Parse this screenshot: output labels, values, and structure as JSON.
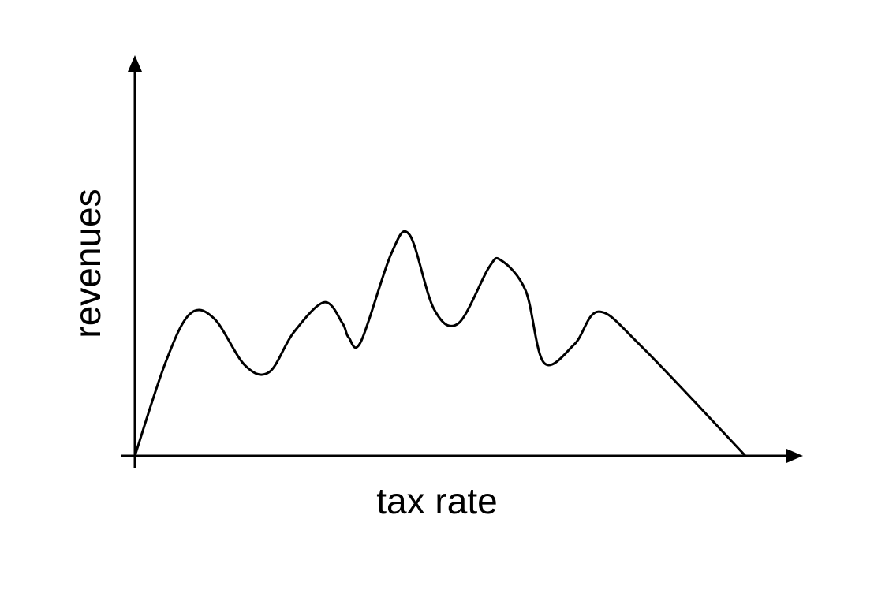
{
  "chart_data": {
    "type": "line",
    "title": "",
    "xlabel": "tax rate",
    "ylabel": "revenues",
    "xlim": [
      0,
      100
    ],
    "ylim": [
      0,
      100
    ],
    "grid": false,
    "legend": "none",
    "tick_labels": false,
    "line_color": "#000000",
    "series": [
      {
        "values_description": "",
        "x": [
          0,
          5,
          9,
          13,
          18,
          22,
          26,
          31,
          34,
          35,
          37,
          42,
          45,
          49,
          53,
          58,
          60,
          64,
          67,
          72,
          76,
          83,
          100
        ],
        "y": [
          0,
          40,
          61,
          59,
          39,
          36,
          53,
          66,
          57,
          51,
          49,
          87,
          95,
          63,
          57,
          81,
          84,
          71,
          40,
          48,
          62,
          47,
          0
        ]
      }
    ]
  }
}
